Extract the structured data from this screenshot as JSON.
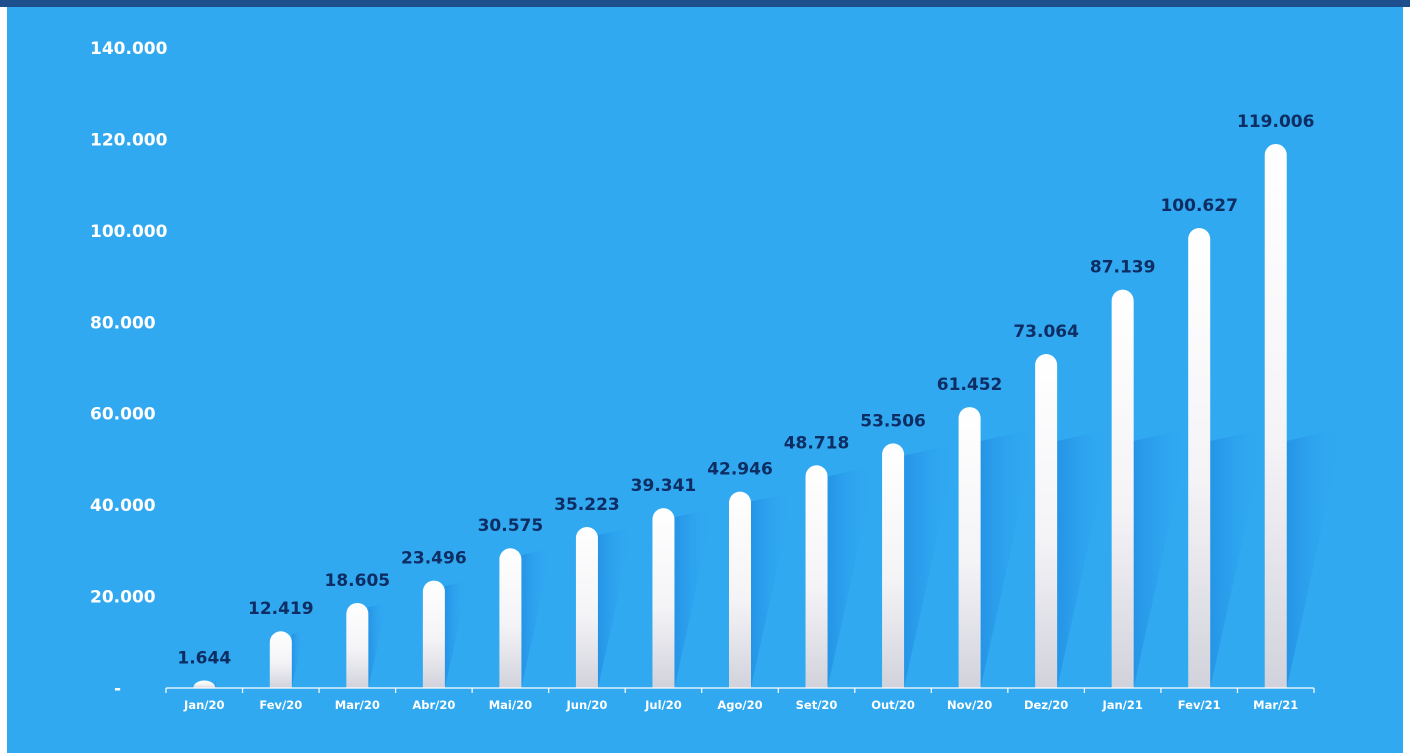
{
  "colors": {
    "panel": "#31a9f1",
    "top_rule": "#1c4f8c",
    "bar_top": "#ffffff",
    "bar_bottom": "#d2d2dc",
    "data_label": "#0d2d63",
    "tick_label": "#ffffff",
    "shadow": "#1e88e0"
  },
  "chart_data": {
    "type": "bar",
    "categories": [
      "Jan/20",
      "Fev/20",
      "Mar/20",
      "Abr/20",
      "Mai/20",
      "Jun/20",
      "Jul/20",
      "Ago/20",
      "Set/20",
      "Out/20",
      "Nov/20",
      "Dez/20",
      "Jan/21",
      "Fev/21",
      "Mar/21"
    ],
    "values": [
      1644,
      12419,
      18605,
      23496,
      30575,
      35223,
      39341,
      42946,
      48718,
      53506,
      61452,
      73064,
      87139,
      100627,
      119006
    ],
    "value_labels": [
      "1.644",
      "12.419",
      "18.605",
      "23.496",
      "30.575",
      "35.223",
      "39.341",
      "42.946",
      "48.718",
      "53.506",
      "61.452",
      "73.064",
      "87.139",
      "100.627",
      "119.006"
    ],
    "y_ticks": [
      0,
      20000,
      40000,
      60000,
      80000,
      100000,
      120000,
      140000
    ],
    "y_tick_labels": [
      "-",
      "20.000",
      "40.000",
      "60.000",
      "80.000",
      "100.000",
      "120.000",
      "140.000"
    ],
    "ylim": [
      0,
      140000
    ],
    "title": "",
    "xlabel": "",
    "ylabel": "",
    "grid": false,
    "legend": "none"
  }
}
